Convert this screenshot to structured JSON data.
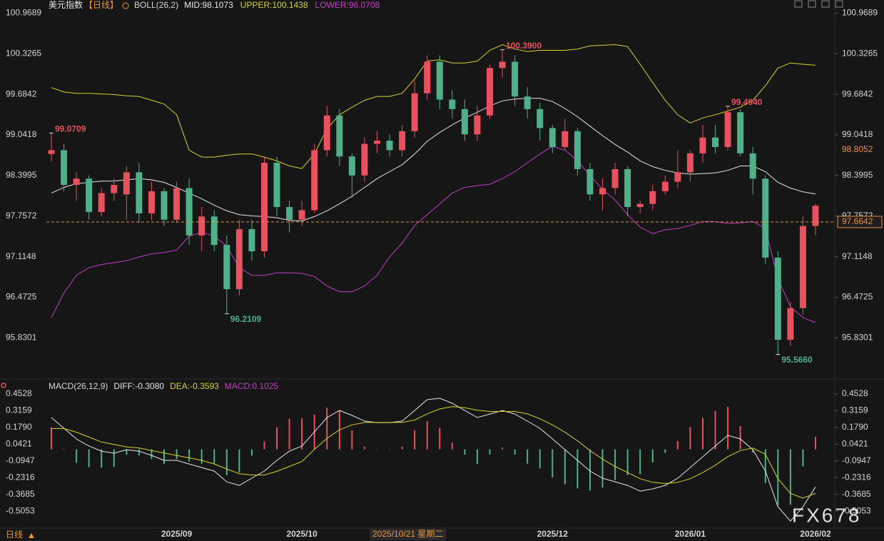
{
  "header": {
    "title": "美元指数",
    "period": "【日线】"
  },
  "footer": {
    "period": "日线"
  },
  "watermark": "FX678",
  "crosshair": {
    "label": "2025/10/21 星期二"
  },
  "chart_data": [
    {
      "type": "candlestick",
      "indicator": "BOLL(26,2)",
      "categories": [
        null,
        null,
        null,
        null,
        null,
        null,
        null,
        null,
        null,
        null,
        "2025/09",
        null,
        null,
        null,
        null,
        null,
        null,
        null,
        null,
        null,
        "2025/10",
        null,
        null,
        null,
        null,
        null,
        null,
        null,
        null,
        null,
        null,
        null,
        null,
        null,
        null,
        null,
        null,
        null,
        null,
        null,
        "2025/12",
        null,
        null,
        null,
        null,
        null,
        null,
        null,
        null,
        null,
        null,
        "2026/01",
        null,
        null,
        null,
        null,
        null,
        null,
        null,
        null,
        null,
        "2026/02"
      ],
      "open": [
        98.74,
        98.8,
        98.25,
        98.35,
        97.82,
        98.12,
        98.1,
        98.45,
        97.8,
        98.15,
        97.7,
        98.2,
        97.45,
        97.75,
        97.3,
        96.6,
        97.55,
        97.2,
        98.6,
        97.9,
        97.7,
        97.85,
        98.8,
        99.35,
        98.7,
        98.4,
        98.9,
        98.95,
        98.8,
        99.1,
        99.7,
        100.2,
        99.6,
        99.45,
        99.05,
        99.35,
        100.1,
        100.2,
        99.65,
        99.45,
        99.15,
        98.85,
        99.1,
        98.5,
        98.1,
        98.2,
        98.5,
        97.9,
        97.95,
        98.15,
        98.3,
        98.45,
        98.75,
        99.0,
        98.85,
        99.4,
        98.75,
        98.35,
        97.1,
        95.8,
        96.3,
        97.6
      ],
      "high": [
        99.0709,
        98.9,
        98.45,
        98.4,
        98.2,
        98.35,
        98.55,
        98.6,
        98.3,
        98.2,
        98.3,
        98.35,
        97.9,
        97.85,
        97.45,
        97.7,
        97.7,
        98.7,
        98.7,
        98.0,
        98.0,
        98.9,
        99.5,
        99.45,
        98.75,
        99.0,
        99.1,
        99.05,
        99.2,
        99.9,
        100.3,
        100.3,
        99.75,
        99.6,
        99.5,
        100.15,
        100.39,
        100.3,
        99.8,
        99.55,
        99.2,
        99.3,
        99.15,
        98.6,
        98.35,
        98.6,
        98.55,
        98.0,
        98.25,
        98.4,
        98.8,
        98.8,
        99.2,
        99.2,
        99.494,
        99.45,
        98.85,
        98.4,
        97.2,
        96.4,
        97.75,
        97.95
      ],
      "low": [
        98.62,
        98.15,
        98.0,
        97.7,
        97.75,
        98.0,
        97.7,
        97.65,
        97.7,
        97.6,
        97.65,
        97.3,
        97.2,
        97.2,
        96.2109,
        96.5,
        97.05,
        97.1,
        97.75,
        97.5,
        97.6,
        97.8,
        98.7,
        98.55,
        98.05,
        98.3,
        98.75,
        98.7,
        98.7,
        99.0,
        99.6,
        99.45,
        99.3,
        98.95,
        98.95,
        99.3,
        99.95,
        99.5,
        99.3,
        98.95,
        98.75,
        98.8,
        98.4,
        98.0,
        97.85,
        98.1,
        97.75,
        97.8,
        97.85,
        98.1,
        98.2,
        98.3,
        98.6,
        98.75,
        98.8,
        98.7,
        98.1,
        97.0,
        95.566,
        95.7,
        96.2,
        97.45
      ],
      "close": [
        98.8,
        98.25,
        98.35,
        97.82,
        98.12,
        98.25,
        98.45,
        97.8,
        98.15,
        97.7,
        98.2,
        97.45,
        97.75,
        97.3,
        96.6,
        97.55,
        97.2,
        98.6,
        97.9,
        97.7,
        97.85,
        98.8,
        99.35,
        98.7,
        98.4,
        98.9,
        98.95,
        98.8,
        99.1,
        99.7,
        100.2,
        99.6,
        99.45,
        99.05,
        99.35,
        100.1,
        100.2,
        99.65,
        99.45,
        99.15,
        98.85,
        99.1,
        98.5,
        98.1,
        98.2,
        98.5,
        97.9,
        97.95,
        98.15,
        98.3,
        98.45,
        98.75,
        99.0,
        98.85,
        99.4,
        98.75,
        98.35,
        97.1,
        95.8,
        96.3,
        97.6,
        97.92
      ],
      "up_color": "#e8515d",
      "down_color": "#4fb08a",
      "ylim": [
        95.19,
        101.12
      ],
      "yticks": [
        100.9689,
        100.3265,
        99.6842,
        99.0418,
        98.3995,
        97.7572,
        97.1148,
        96.4725,
        95.8301
      ],
      "series": [
        {
          "label": "MID:98.1073",
          "color": "#e6e6e6",
          "values": [
            98.12,
            98.21,
            98.27,
            98.29,
            98.31,
            98.31,
            98.33,
            98.35,
            98.33,
            98.29,
            98.21,
            98.12,
            98.03,
            97.93,
            97.84,
            97.78,
            97.76,
            97.75,
            97.73,
            97.69,
            97.68,
            97.75,
            97.84,
            97.95,
            98.07,
            98.21,
            98.35,
            98.46,
            98.57,
            98.74,
            98.94,
            99.08,
            99.2,
            99.31,
            99.4,
            99.5,
            99.58,
            99.61,
            99.62,
            99.62,
            99.57,
            99.46,
            99.33,
            99.18,
            99.03,
            98.89,
            98.77,
            98.63,
            98.54,
            98.48,
            98.44,
            98.42,
            98.43,
            98.44,
            98.48,
            98.55,
            98.55,
            98.46,
            98.29,
            98.2,
            98.14,
            98.1073
          ]
        },
        {
          "label": "UPPER:100.1438",
          "color": "#d8d22a",
          "values": [
            99.79,
            99.72,
            99.7,
            99.7,
            99.69,
            99.68,
            99.66,
            99.65,
            99.59,
            99.53,
            99.36,
            98.8,
            98.69,
            98.69,
            98.72,
            98.74,
            98.74,
            98.69,
            98.63,
            98.55,
            98.51,
            98.74,
            99.14,
            99.36,
            99.48,
            99.59,
            99.65,
            99.65,
            99.7,
            99.93,
            100.21,
            100.23,
            100.18,
            100.18,
            100.21,
            100.38,
            100.47,
            100.4,
            100.36,
            100.38,
            100.38,
            100.38,
            100.4,
            100.45,
            100.46,
            100.47,
            100.44,
            100.16,
            99.87,
            99.59,
            99.36,
            99.23,
            99.31,
            99.36,
            99.42,
            99.48,
            99.59,
            99.82,
            100.1,
            100.18,
            100.16,
            100.1438
          ]
        },
        {
          "label": "LOWER:96.0708",
          "color": "#c53fc6",
          "values": [
            96.15,
            96.54,
            96.82,
            96.94,
            96.99,
            97.02,
            97.05,
            97.11,
            97.16,
            97.18,
            97.22,
            97.44,
            97.5,
            97.44,
            97.28,
            96.94,
            96.82,
            96.82,
            96.86,
            96.86,
            96.85,
            96.8,
            96.65,
            96.56,
            96.56,
            96.65,
            96.82,
            97.11,
            97.33,
            97.61,
            97.78,
            97.95,
            98.12,
            98.21,
            98.24,
            98.26,
            98.35,
            98.46,
            98.6,
            98.74,
            98.86,
            98.8,
            98.63,
            98.4,
            98.18,
            98.01,
            97.78,
            97.58,
            97.48,
            97.54,
            97.56,
            97.61,
            97.67,
            97.67,
            97.64,
            97.65,
            97.67,
            97.56,
            96.77,
            96.32,
            96.15,
            96.0708
          ]
        }
      ],
      "annotations": [
        {
          "label": "99.0709",
          "value": 99.0709
        },
        {
          "label": "96.2109",
          "value": 96.2109
        },
        {
          "label": "100.3900",
          "value": 100.39
        },
        {
          "label": "99.4940",
          "value": 99.494
        },
        {
          "label": "95.5660",
          "value": 95.566
        }
      ],
      "current": {
        "value": 97.6642,
        "color": "#e8923a"
      },
      "marker": {
        "value": 98.8052,
        "color": "#e8923a"
      }
    },
    {
      "type": "macd",
      "indicator": "MACD(26,12,9)",
      "ylim": [
        -0.645,
        0.523
      ],
      "yticks": [
        0.4528,
        0.3159,
        {
          "value": 0.179,
          "label": "0.1790"
        },
        0.0421,
        -0.0947,
        -0.2316,
        -0.3685,
        -0.5053
      ],
      "series": [
        {
          "label": "DIFF:-0.3080",
          "color": "#e6e6e6",
          "values": [
            0.26,
            0.172,
            0.085,
            0.027,
            -0.015,
            -0.032,
            -0.003,
            -0.015,
            -0.05,
            -0.09,
            -0.09,
            -0.12,
            -0.149,
            -0.178,
            -0.266,
            -0.295,
            -0.236,
            -0.178,
            -0.09,
            -0.015,
            0.027,
            0.143,
            0.26,
            0.318,
            0.278,
            0.231,
            0.219,
            0.219,
            0.231,
            0.318,
            0.406,
            0.418,
            0.377,
            0.318,
            0.26,
            0.289,
            0.318,
            0.289,
            0.231,
            0.172,
            0.085,
            -0.003,
            -0.09,
            -0.178,
            -0.236,
            -0.266,
            -0.295,
            -0.342,
            -0.324,
            -0.295,
            -0.236,
            -0.149,
            -0.061,
            0.027,
            0.114,
            0.085,
            -0.003,
            -0.178,
            -0.47,
            -0.587,
            -0.47,
            -0.308
          ]
        },
        {
          "label": "DEA:-0.3593",
          "color": "#d8d22a",
          "values": [
            0.17,
            0.17,
            0.14,
            0.1,
            0.06,
            0.04,
            0.02,
            0.01,
            -0.01,
            -0.03,
            -0.05,
            -0.07,
            -0.09,
            -0.12,
            -0.16,
            -0.2,
            -0.21,
            -0.21,
            -0.18,
            -0.14,
            -0.1,
            0.0,
            0.09,
            0.16,
            0.2,
            0.22,
            0.22,
            0.22,
            0.22,
            0.24,
            0.29,
            0.33,
            0.35,
            0.34,
            0.32,
            0.31,
            0.31,
            0.31,
            0.29,
            0.25,
            0.2,
            0.14,
            0.07,
            -0.01,
            -0.08,
            -0.14,
            -0.19,
            -0.24,
            -0.27,
            -0.28,
            -0.27,
            -0.24,
            -0.19,
            -0.13,
            -0.06,
            -0.01,
            0.01,
            -0.04,
            -0.24,
            -0.36,
            -0.4,
            -0.3593
          ]
        },
        {
          "label": "MACD:0.1025",
          "color": "#c53fc6",
          "style": "histogram",
          "up_color": "#e8515d",
          "down_color": "#4fb08a",
          "values": [
            0.18,
            0.004,
            -0.11,
            -0.146,
            -0.15,
            -0.144,
            -0.046,
            -0.05,
            -0.08,
            -0.12,
            -0.08,
            -0.1,
            -0.118,
            -0.116,
            -0.212,
            -0.19,
            -0.052,
            0.064,
            0.18,
            0.25,
            0.254,
            0.286,
            0.34,
            0.316,
            0.156,
            0.022,
            -0.002,
            -0.002,
            0.022,
            0.156,
            0.232,
            0.176,
            0.054,
            -0.044,
            -0.12,
            -0.042,
            0.016,
            -0.042,
            -0.118,
            -0.156,
            -0.23,
            -0.286,
            -0.32,
            -0.336,
            -0.312,
            -0.252,
            -0.21,
            -0.204,
            -0.108,
            -0.03,
            0.068,
            0.182,
            0.258,
            0.314,
            0.348,
            0.19,
            -0.026,
            -0.276,
            -0.46,
            -0.454,
            -0.14,
            0.1025
          ]
        }
      ]
    }
  ]
}
